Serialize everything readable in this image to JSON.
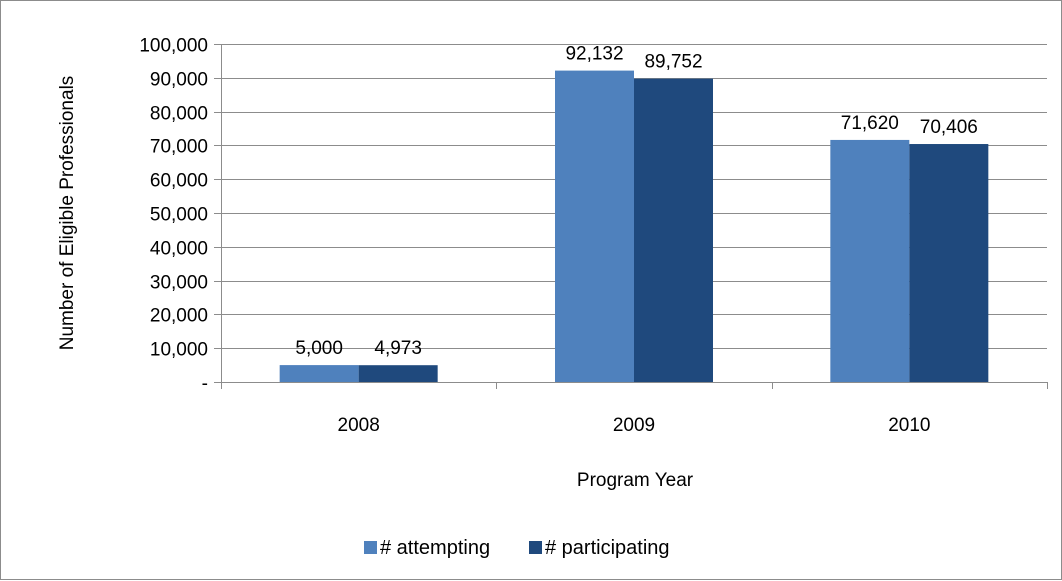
{
  "chart_data": {
    "type": "bar",
    "categories": [
      "2008",
      "2009",
      "2010"
    ],
    "series": [
      {
        "name": "# attempting",
        "values": [
          5000,
          92132,
          71620
        ],
        "labels": [
          "5,000",
          "92,132",
          "71,620"
        ],
        "color": "#4f81bd"
      },
      {
        "name": "# participating",
        "values": [
          4973,
          89752,
          70406
        ],
        "labels": [
          "4,973",
          "89,752",
          "70,406"
        ],
        "color": "#1f497d"
      }
    ],
    "title": "",
    "xlabel": "Program Year",
    "ylabel": "Number of Eligible Professionals",
    "ylim": [
      0,
      100000
    ],
    "yticks": [
      0,
      10000,
      20000,
      30000,
      40000,
      50000,
      60000,
      70000,
      80000,
      90000,
      100000
    ],
    "ytick_labels": [
      "-",
      "10,000",
      "20,000",
      "30,000",
      "40,000",
      "50,000",
      "60,000",
      "70,000",
      "80,000",
      "90,000",
      "100,000"
    ],
    "grid": true,
    "legend_position": "bottom",
    "gridline_color": "#8c8c8c"
  }
}
